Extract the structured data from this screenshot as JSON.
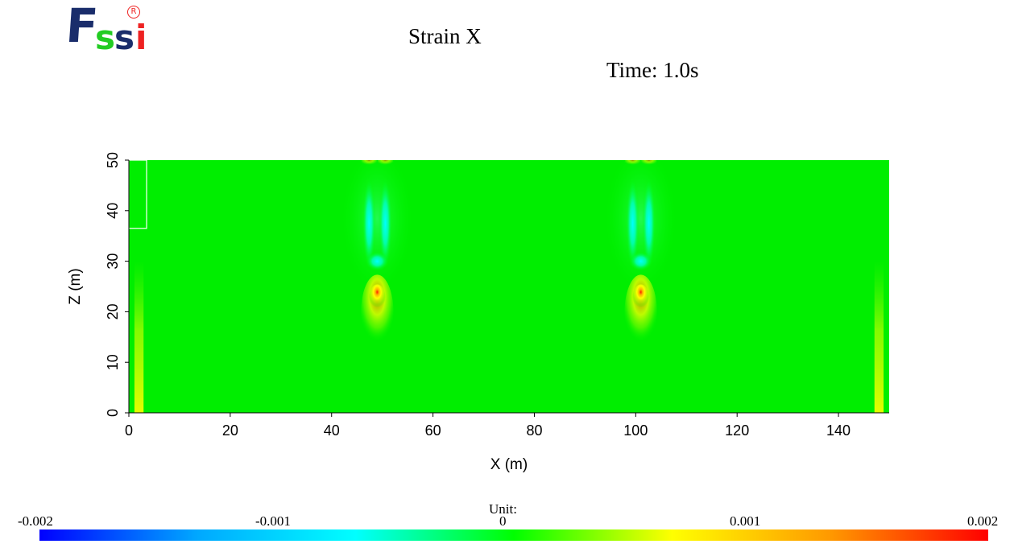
{
  "logo": {
    "f": "F",
    "s1": "s",
    "s2": "s",
    "i": "i",
    "registered": "R"
  },
  "header": {
    "title": "Strain X",
    "time_label": "Time: 1.0s"
  },
  "chart_data": {
    "type": "heatmap",
    "title": "Strain X",
    "subtitle": "Time: 1.0s",
    "xlabel": "X (m)",
    "ylabel": "Z (m)",
    "xlim": [
      0,
      150
    ],
    "ylim": [
      0,
      50
    ],
    "xticks": [
      "0",
      "20",
      "40",
      "60",
      "80",
      "100",
      "120",
      "140"
    ],
    "yticks": [
      "0",
      "10",
      "20",
      "30",
      "40",
      "50"
    ],
    "background_value": 0.0,
    "features": [
      {
        "kind": "positive_peak",
        "x": 49,
        "z": 23.5,
        "value": 0.002
      },
      {
        "kind": "negative_column",
        "x": 49,
        "z_range": [
          30,
          45
        ],
        "value": -0.0009
      },
      {
        "kind": "positive_peak",
        "x": 101,
        "z": 23.5,
        "value": 0.002
      },
      {
        "kind": "negative_column",
        "x": 101,
        "z_range": [
          30,
          45
        ],
        "value": -0.0009
      },
      {
        "kind": "edge_band",
        "x": 2,
        "z_range": [
          0,
          30
        ],
        "value": 0.0006
      },
      {
        "kind": "edge_band",
        "x": 148,
        "z_range": [
          0,
          30
        ],
        "value": 0.0006
      }
    ],
    "inset_box": {
      "x_range": [
        0,
        3.5
      ],
      "z_range": [
        36.5,
        50
      ]
    },
    "colorbar": {
      "unit_label": "Unit:",
      "min": -0.002,
      "max": 0.002,
      "tick_labels": [
        "-0.002",
        "-0.001",
        "0",
        "0.001",
        "0.002"
      ],
      "colors": [
        "#0000ff",
        "#00a8ff",
        "#00ffff",
        "#00ff00",
        "#ffff00",
        "#ff9900",
        "#ff0000"
      ]
    }
  }
}
